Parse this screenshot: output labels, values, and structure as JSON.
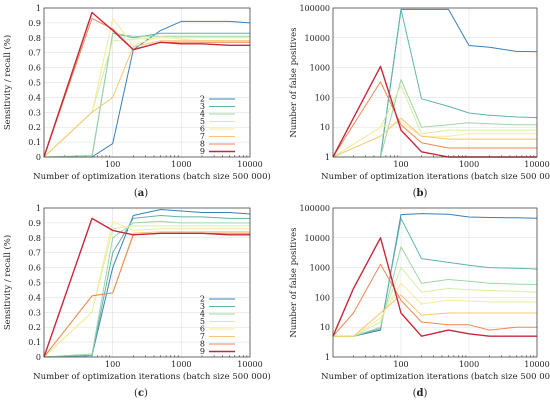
{
  "colors": {
    "2": "#3c7fb4",
    "3": "#5fb4aa",
    "4": "#9ed6a6",
    "5": "#d7eea6",
    "6": "#f7eb9b",
    "7": "#f5c772",
    "8": "#e98953",
    "9": "#c8283a"
  },
  "chart_data": [
    {
      "id": "a",
      "type": "line",
      "label": "(a)",
      "xlabel": "Number of optimization iterations (batch size 500 000)",
      "ylabel": "Sensitivity / recall (%)",
      "xscale": "log",
      "yscale": "linear",
      "xlim": [
        10,
        10000
      ],
      "ylim": [
        0,
        1
      ],
      "xticks": [
        {
          "v": 100,
          "label": "100"
        },
        {
          "v": 1000,
          "label": "1000"
        },
        {
          "v": 10000,
          "label": "10000"
        }
      ],
      "yticks": [
        {
          "v": 0,
          "label": "0"
        },
        {
          "v": 0.1,
          "label": "0.1"
        },
        {
          "v": 0.2,
          "label": "0.2"
        },
        {
          "v": 0.3,
          "label": "0.3"
        },
        {
          "v": 0.4,
          "label": "0.4"
        },
        {
          "v": 0.5,
          "label": "0.5"
        },
        {
          "v": 0.6,
          "label": "0.6"
        },
        {
          "v": 0.7,
          "label": "0.7"
        },
        {
          "v": 0.8,
          "label": "0.8"
        },
        {
          "v": 0.9,
          "label": "0.9"
        },
        {
          "v": 1,
          "label": "1"
        }
      ],
      "grid": true,
      "legend": {
        "position": "bottom-right",
        "entries": [
          "2",
          "3",
          "4",
          "5",
          "6",
          "7",
          "8",
          "9"
        ]
      },
      "x": [
        10,
        50,
        100,
        200,
        500,
        1000,
        2000,
        5000,
        10000
      ],
      "series": [
        {
          "name": "2",
          "values": [
            0,
            0,
            0.09,
            0.72,
            0.85,
            0.91,
            0.91,
            0.91,
            0.9
          ]
        },
        {
          "name": "3",
          "values": [
            0,
            0,
            0.83,
            0.8,
            0.83,
            0.83,
            0.83,
            0.83,
            0.83
          ]
        },
        {
          "name": "4",
          "values": [
            0,
            0.01,
            0.83,
            0.81,
            0.81,
            0.81,
            0.81,
            0.81,
            0.81
          ]
        },
        {
          "name": "5",
          "values": [
            0,
            0.3,
            0.78,
            0.79,
            0.8,
            0.8,
            0.8,
            0.8,
            0.8
          ]
        },
        {
          "name": "6",
          "values": [
            0,
            0.3,
            0.93,
            0.75,
            0.81,
            0.79,
            0.78,
            0.78,
            0.78
          ]
        },
        {
          "name": "7",
          "values": [
            0,
            0.3,
            0.4,
            0.74,
            0.78,
            0.78,
            0.78,
            0.78,
            0.78
          ]
        },
        {
          "name": "8",
          "values": [
            0,
            0.93,
            0.86,
            0.72,
            0.77,
            0.77,
            0.77,
            0.77,
            0.77
          ]
        },
        {
          "name": "9",
          "values": [
            0,
            0.97,
            0.85,
            0.72,
            0.77,
            0.76,
            0.76,
            0.75,
            0.75
          ]
        }
      ]
    },
    {
      "id": "b",
      "type": "line",
      "label": "(b)",
      "xlabel": "Number of optimization iterations (batch size 500 000)",
      "ylabel": "Number of false positives",
      "xscale": "log",
      "yscale": "log",
      "xlim": [
        10,
        10000
      ],
      "ylim": [
        1,
        100000
      ],
      "xticks": [
        {
          "v": 100,
          "label": "100"
        },
        {
          "v": 1000,
          "label": "1000"
        },
        {
          "v": 10000,
          "label": "10000"
        }
      ],
      "yticks": [
        {
          "v": 1,
          "label": "1"
        },
        {
          "v": 10,
          "label": "10"
        },
        {
          "v": 100,
          "label": "100"
        },
        {
          "v": 1000,
          "label": "1000"
        },
        {
          "v": 10000,
          "label": "10000"
        },
        {
          "v": 100000,
          "label": "100000"
        }
      ],
      "grid": true,
      "x": [
        10,
        50,
        100,
        200,
        500,
        1000,
        2000,
        5000,
        10000
      ],
      "series": [
        {
          "name": "2",
          "values": [
            1,
            1,
            90000,
            90000,
            90000,
            5500,
            4800,
            3500,
            3400
          ]
        },
        {
          "name": "3",
          "values": [
            1,
            1,
            90000,
            90,
            50,
            30,
            25,
            22,
            21
          ]
        },
        {
          "name": "4",
          "values": [
            1,
            1,
            400,
            10,
            12,
            14,
            13,
            12,
            12
          ]
        },
        {
          "name": "5",
          "values": [
            1,
            10,
            250,
            6,
            8,
            8,
            8,
            8,
            8
          ]
        },
        {
          "name": "6",
          "values": [
            1,
            10,
            15,
            5,
            5,
            6,
            6,
            6,
            6
          ]
        },
        {
          "name": "7",
          "values": [
            1,
            5,
            20,
            5,
            4,
            4,
            4,
            4,
            4
          ]
        },
        {
          "name": "8",
          "values": [
            1,
            330,
            12,
            3,
            2,
            2,
            2,
            2,
            2
          ]
        },
        {
          "name": "9",
          "values": [
            1,
            1100,
            8,
            1.5,
            1,
            1,
            1,
            1,
            1
          ]
        }
      ]
    },
    {
      "id": "c",
      "type": "line",
      "label": "(c)",
      "xlabel": "Number of optimization iterations (batch size 500 000)",
      "ylabel": "Sensitivity / recall (%)",
      "xscale": "log",
      "yscale": "linear",
      "xlim": [
        10,
        10000
      ],
      "ylim": [
        0,
        1
      ],
      "xticks": [
        {
          "v": 100,
          "label": "100"
        },
        {
          "v": 1000,
          "label": "1000"
        },
        {
          "v": 10000,
          "label": "10000"
        }
      ],
      "yticks": [
        {
          "v": 0,
          "label": "0"
        },
        {
          "v": 0.1,
          "label": "0.1"
        },
        {
          "v": 0.2,
          "label": "0.2"
        },
        {
          "v": 0.3,
          "label": "0.3"
        },
        {
          "v": 0.4,
          "label": "0.4"
        },
        {
          "v": 0.5,
          "label": "0.5"
        },
        {
          "v": 0.6,
          "label": "0.6"
        },
        {
          "v": 0.7,
          "label": "0.7"
        },
        {
          "v": 0.8,
          "label": "0.8"
        },
        {
          "v": 0.9,
          "label": "0.9"
        },
        {
          "v": 1,
          "label": "1"
        }
      ],
      "grid": true,
      "legend": {
        "position": "bottom-right",
        "entries": [
          "2",
          "3",
          "4",
          "5",
          "6",
          "7",
          "8",
          "9"
        ]
      },
      "x": [
        10,
        50,
        100,
        200,
        500,
        1000,
        2000,
        5000,
        10000
      ],
      "series": [
        {
          "name": "2",
          "values": [
            0,
            0.01,
            0.6,
            0.95,
            0.99,
            0.98,
            0.97,
            0.97,
            0.96
          ]
        },
        {
          "name": "3",
          "values": [
            0,
            0.01,
            0.7,
            0.93,
            0.95,
            0.94,
            0.94,
            0.93,
            0.93
          ]
        },
        {
          "name": "4",
          "values": [
            0,
            0.02,
            0.8,
            0.9,
            0.91,
            0.9,
            0.9,
            0.9,
            0.9
          ]
        },
        {
          "name": "5",
          "values": [
            0,
            0.3,
            0.86,
            0.88,
            0.88,
            0.88,
            0.88,
            0.88,
            0.88
          ]
        },
        {
          "name": "6",
          "values": [
            0,
            0.3,
            0.91,
            0.85,
            0.86,
            0.86,
            0.86,
            0.86,
            0.86
          ]
        },
        {
          "name": "7",
          "values": [
            0,
            0.41,
            0.43,
            0.83,
            0.84,
            0.84,
            0.84,
            0.84,
            0.84
          ]
        },
        {
          "name": "8",
          "values": [
            0,
            0.41,
            0.43,
            0.82,
            0.83,
            0.83,
            0.83,
            0.83,
            0.83
          ]
        },
        {
          "name": "9",
          "values": [
            0,
            0.93,
            0.85,
            0.82,
            0.83,
            0.83,
            0.83,
            0.82,
            0.82
          ]
        }
      ]
    },
    {
      "id": "d",
      "type": "line",
      "label": "(d)",
      "xlabel": "Number of optimization iterations (batch size 500 000)",
      "ylabel": "Number of false positives",
      "xscale": "log",
      "yscale": "log",
      "xlim": [
        10,
        10000
      ],
      "ylim": [
        1,
        100000
      ],
      "xticks": [
        {
          "v": 100,
          "label": "100"
        },
        {
          "v": 1000,
          "label": "1000"
        },
        {
          "v": 10000,
          "label": "10000"
        }
      ],
      "yticks": [
        {
          "v": 1,
          "label": "1"
        },
        {
          "v": 10,
          "label": "10"
        },
        {
          "v": 100,
          "label": "100"
        },
        {
          "v": 1000,
          "label": "1000"
        },
        {
          "v": 10000,
          "label": "10000"
        },
        {
          "v": 100000,
          "label": "100000"
        }
      ],
      "grid": true,
      "x": [
        10,
        20,
        50,
        100,
        200,
        500,
        1000,
        2000,
        5000,
        10000
      ],
      "series": [
        {
          "name": "2",
          "values": [
            5,
            5,
            8,
            60000,
            65000,
            62000,
            50000,
            48000,
            47000,
            45000
          ]
        },
        {
          "name": "3",
          "values": [
            5,
            5,
            9,
            45000,
            2000,
            1500,
            1200,
            1000,
            950,
            900
          ]
        },
        {
          "name": "4",
          "values": [
            5,
            5,
            10,
            5000,
            300,
            400,
            350,
            300,
            280,
            270
          ]
        },
        {
          "name": "5",
          "values": [
            5,
            5,
            15,
            1000,
            150,
            200,
            180,
            170,
            160,
            150
          ]
        },
        {
          "name": "6",
          "values": [
            5,
            5,
            20,
            300,
            60,
            80,
            75,
            70,
            70,
            70
          ]
        },
        {
          "name": "7",
          "values": [
            5,
            5,
            30,
            120,
            25,
            30,
            30,
            30,
            30,
            30
          ]
        },
        {
          "name": "8",
          "values": [
            5,
            30,
            1300,
            80,
            15,
            12,
            12,
            8,
            10,
            10
          ]
        },
        {
          "name": "9",
          "values": [
            5,
            200,
            10000,
            30,
            5,
            8,
            6,
            5,
            5,
            5
          ]
        }
      ]
    }
  ]
}
